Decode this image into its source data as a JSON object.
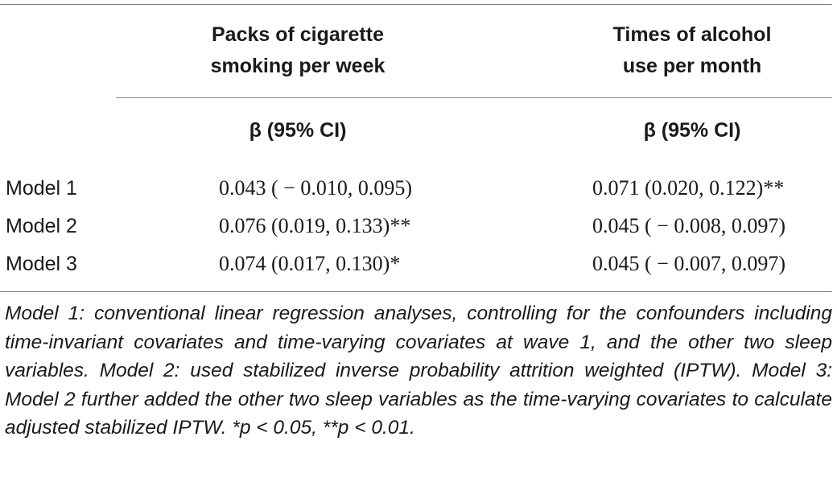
{
  "table": {
    "header": {
      "col1_line1": "Packs of cigarette",
      "col1_line2": "smoking per week",
      "col2_line1": "Times of alcohol",
      "col2_line2": "use per month",
      "col1_sub": "β (95% CI)",
      "col2_sub": "β (95% CI)"
    },
    "rows": [
      {
        "label": "Model 1",
        "col1": "0.043 ( − 0.010, 0.095)",
        "col2": "0.071 (0.020, 0.122)**"
      },
      {
        "label": "Model 2",
        "col1": "0.076 (0.019, 0.133)**",
        "col2": "0.045 ( − 0.008, 0.097)"
      },
      {
        "label": "Model 3",
        "col1": "0.074 (0.017, 0.130)*",
        "col2": "0.045 ( − 0.007, 0.097)"
      }
    ],
    "footnote": "Model 1: conventional linear regression analyses, controlling for the confounders including time-invariant covariates and time-varying covariates at wave 1, and the other two sleep variables. Model 2: used stabilized inverse probability attrition weighted (IPTW). Model 3: Model 2 further added the other two sleep variables as the time-varying covariates to calculate adjusted stabilized IPTW. *p < 0.05, **p < 0.01."
  }
}
